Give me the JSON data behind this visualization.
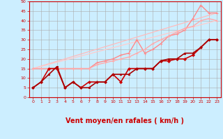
{
  "bg_color": "#cceeff",
  "grid_color": "#aaaaaa",
  "xlabel": "Vent moyen/en rafales ( km/h )",
  "xlabel_color": "#cc0000",
  "xlabel_fontsize": 7,
  "xlim": [
    -0.5,
    23.5
  ],
  "ylim": [
    0,
    50
  ],
  "yticks": [
    0,
    5,
    10,
    15,
    20,
    25,
    30,
    35,
    40,
    45,
    50
  ],
  "xticks": [
    0,
    1,
    2,
    3,
    4,
    5,
    6,
    7,
    8,
    9,
    10,
    11,
    12,
    13,
    14,
    15,
    16,
    17,
    18,
    19,
    20,
    21,
    22,
    23
  ],
  "series": [
    {
      "x": [
        0,
        23
      ],
      "y": [
        15,
        44
      ],
      "color": "#ffbbbb",
      "lw": 0.9,
      "marker": null,
      "ms": 0
    },
    {
      "x": [
        0,
        23
      ],
      "y": [
        15,
        40
      ],
      "color": "#ffcccc",
      "lw": 0.9,
      "marker": null,
      "ms": 0
    },
    {
      "x": [
        0,
        1,
        2,
        3,
        4,
        5,
        6,
        7,
        8,
        9,
        10,
        11,
        12,
        13,
        14,
        15,
        16,
        17,
        18,
        19,
        20,
        21,
        22,
        23
      ],
      "y": [
        15,
        15,
        15,
        15,
        15,
        15,
        15,
        15,
        18,
        19,
        20,
        22,
        23,
        30,
        23,
        25,
        28,
        32,
        33,
        35,
        41,
        48,
        44,
        44
      ],
      "color": "#ff8888",
      "lw": 1.0,
      "marker": "+",
      "ms": 3.0
    },
    {
      "x": [
        0,
        1,
        2,
        3,
        4,
        5,
        6,
        7,
        8,
        9,
        10,
        11,
        12,
        13,
        14,
        15,
        16,
        17,
        18,
        19,
        20,
        21,
        22,
        23
      ],
      "y": [
        15,
        15,
        15,
        15,
        15,
        15,
        15,
        15,
        17,
        18,
        19,
        20,
        21,
        23,
        25,
        28,
        30,
        32,
        34,
        36,
        37,
        40,
        41,
        40
      ],
      "color": "#ffaaaa",
      "lw": 1.0,
      "marker": "+",
      "ms": 2.5
    },
    {
      "x": [
        0,
        1,
        2,
        3,
        4,
        5,
        6,
        7,
        8,
        9,
        10,
        11,
        12,
        13,
        14,
        15,
        16,
        17,
        18,
        19,
        20,
        21,
        22,
        23
      ],
      "y": [
        5,
        8,
        15,
        15,
        5,
        8,
        5,
        8,
        8,
        8,
        12,
        8,
        15,
        15,
        15,
        15,
        19,
        19,
        20,
        20,
        22,
        26,
        30,
        30
      ],
      "color": "#cc0000",
      "lw": 1.2,
      "marker": "D",
      "ms": 2.0
    },
    {
      "x": [
        0,
        1,
        2,
        3,
        4,
        5,
        6,
        7,
        8,
        9,
        10,
        11,
        12,
        13,
        14,
        15,
        16,
        17,
        18,
        19,
        20,
        21,
        22,
        23
      ],
      "y": [
        5,
        8,
        12,
        16,
        5,
        8,
        5,
        5,
        8,
        8,
        12,
        12,
        12,
        15,
        15,
        15,
        19,
        20,
        20,
        23,
        23,
        26,
        30,
        30
      ],
      "color": "#aa0000",
      "lw": 1.2,
      "marker": "s",
      "ms": 2.0
    }
  ],
  "wind_symbols": [
    "↗",
    "→",
    " ",
    " ",
    "↑",
    "↑",
    " ",
    " ",
    "↑",
    " ",
    "↑",
    "↑",
    "↑",
    "↑",
    "↑",
    "↑",
    "↑",
    "↑",
    "↑",
    "↑",
    "↑",
    "↑",
    "↑",
    "↑"
  ]
}
